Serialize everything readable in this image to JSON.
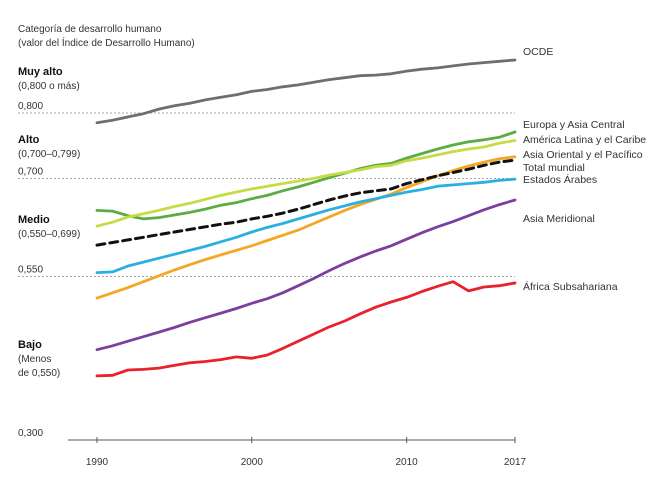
{
  "chart_data": {
    "type": "line",
    "category_header": [
      "Categoría de desarrollo humano",
      "(valor del Índice de Desarrollo Humano)"
    ],
    "categories": [
      {
        "name": "Muy alto",
        "range": [
          "(0,800 o más)"
        ]
      },
      {
        "name": "Alto",
        "range": [
          "(0,700–0,799)"
        ]
      },
      {
        "name": "Medio",
        "range": [
          "(0,550–0,699)"
        ]
      },
      {
        "name": "Bajo",
        "range": [
          "(Menos",
          "de 0,550)"
        ]
      }
    ],
    "x_ticks": [
      {
        "value": 1990,
        "label": "1990"
      },
      {
        "value": 2000,
        "label": "2000"
      },
      {
        "value": 2010,
        "label": "2010"
      },
      {
        "value": 2017,
        "label": "2017"
      }
    ],
    "y_ticks": [
      {
        "value": 0.8,
        "label": "0,800"
      },
      {
        "value": 0.7,
        "label": "0,700"
      },
      {
        "value": 0.55,
        "label": "0,550"
      },
      {
        "value": 0.3,
        "label": "0,300"
      }
    ],
    "xlim": [
      1990,
      2017
    ],
    "ylim": [
      0.3,
      0.9
    ],
    "x": [
      1990,
      1991,
      1992,
      1993,
      1994,
      1995,
      1996,
      1997,
      1998,
      1999,
      2000,
      2001,
      2002,
      2003,
      2004,
      2005,
      2006,
      2007,
      2008,
      2009,
      2010,
      2011,
      2012,
      2013,
      2014,
      2015,
      2016,
      2017
    ],
    "series": [
      {
        "name": "OCDE",
        "color": "#6e6e6e",
        "dashed": false,
        "values": [
          0.785,
          0.789,
          0.794,
          0.799,
          0.806,
          0.811,
          0.815,
          0.82,
          0.824,
          0.828,
          0.833,
          0.836,
          0.84,
          0.843,
          0.847,
          0.851,
          0.854,
          0.857,
          0.858,
          0.86,
          0.864,
          0.867,
          0.869,
          0.872,
          0.875,
          0.877,
          0.879,
          0.881
        ]
      },
      {
        "name": "Europa y Asia Central",
        "color": "#5aac44",
        "dashed": false,
        "values": [
          0.651,
          0.65,
          0.643,
          0.638,
          0.64,
          0.644,
          0.648,
          0.653,
          0.659,
          0.663,
          0.669,
          0.674,
          0.681,
          0.687,
          0.694,
          0.701,
          0.708,
          0.715,
          0.72,
          0.723,
          0.731,
          0.738,
          0.745,
          0.751,
          0.756,
          0.759,
          0.763,
          0.771
        ]
      },
      {
        "name": "América Latina y el Caribe",
        "color": "#c6dc45",
        "dashed": false,
        "values": [
          0.627,
          0.633,
          0.641,
          0.646,
          0.651,
          0.657,
          0.662,
          0.668,
          0.674,
          0.679,
          0.684,
          0.688,
          0.692,
          0.696,
          0.7,
          0.705,
          0.709,
          0.713,
          0.718,
          0.72,
          0.727,
          0.731,
          0.736,
          0.741,
          0.745,
          0.748,
          0.754,
          0.758
        ]
      },
      {
        "name": "Asia Oriental y el Pacífico",
        "color": "#f5a623",
        "dashed": false,
        "values": [
          0.517,
          0.525,
          0.533,
          0.542,
          0.551,
          0.56,
          0.568,
          0.576,
          0.583,
          0.59,
          0.597,
          0.605,
          0.613,
          0.621,
          0.631,
          0.641,
          0.651,
          0.66,
          0.668,
          0.676,
          0.686,
          0.695,
          0.704,
          0.712,
          0.719,
          0.725,
          0.73,
          0.733
        ]
      },
      {
        "name": "Total mundial",
        "color": "#111111",
        "dashed": true,
        "values": [
          0.598,
          0.602,
          0.606,
          0.61,
          0.614,
          0.618,
          0.622,
          0.626,
          0.63,
          0.633,
          0.638,
          0.642,
          0.647,
          0.653,
          0.66,
          0.667,
          0.673,
          0.678,
          0.681,
          0.684,
          0.692,
          0.698,
          0.704,
          0.709,
          0.714,
          0.72,
          0.725,
          0.728
        ]
      },
      {
        "name": "Estados Árabes",
        "color": "#2ab0e0",
        "dashed": false,
        "values": [
          0.556,
          0.557,
          0.566,
          0.572,
          0.578,
          0.584,
          0.59,
          0.596,
          0.603,
          0.61,
          0.618,
          0.625,
          0.631,
          0.638,
          0.645,
          0.652,
          0.658,
          0.664,
          0.669,
          0.674,
          0.679,
          0.683,
          0.688,
          0.69,
          0.692,
          0.694,
          0.697,
          0.699
        ]
      },
      {
        "name": "Asia Meridional",
        "color": "#7b3fa0",
        "dashed": false,
        "values": [
          0.438,
          0.444,
          0.451,
          0.458,
          0.465,
          0.472,
          0.48,
          0.487,
          0.494,
          0.501,
          0.509,
          0.516,
          0.525,
          0.536,
          0.547,
          0.559,
          0.57,
          0.58,
          0.589,
          0.597,
          0.607,
          0.617,
          0.626,
          0.634,
          0.643,
          0.652,
          0.66,
          0.667
        ]
      },
      {
        "name": "África Subsahariana",
        "color": "#e8212b",
        "dashed": false,
        "values": [
          0.398,
          0.399,
          0.407,
          0.408,
          0.41,
          0.414,
          0.418,
          0.42,
          0.423,
          0.427,
          0.425,
          0.43,
          0.44,
          0.451,
          0.462,
          0.473,
          0.482,
          0.493,
          0.503,
          0.511,
          0.518,
          0.527,
          0.535,
          0.542,
          0.528,
          0.534,
          0.536,
          0.54
        ]
      }
    ]
  }
}
